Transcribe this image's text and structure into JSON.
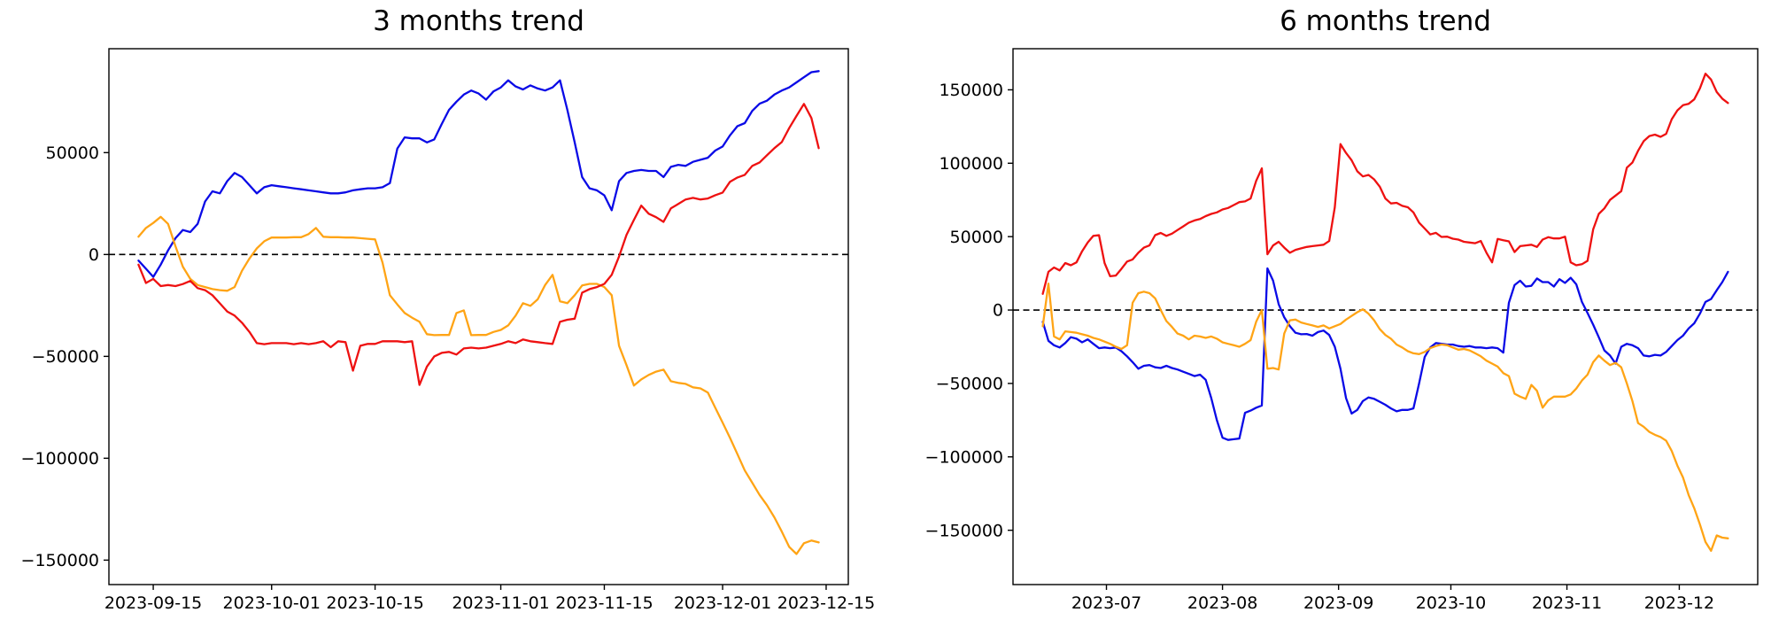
{
  "colors": {
    "blue": "#0a0ae6",
    "red": "#ee1111",
    "orange": "#ffa415",
    "axis": "#000000",
    "zero_line": "#000000",
    "background": "#ffffff"
  },
  "chart_data": [
    {
      "type": "line",
      "title": "3 months trend",
      "grid": false,
      "legend": "none",
      "zero_line": true,
      "ylim": [
        -162000,
        101000
      ],
      "y_ticks": [
        {
          "label": "50000",
          "value": 50000
        },
        {
          "label": "0",
          "value": 0
        },
        {
          "label": "−50000",
          "value": -50000
        },
        {
          "label": "−100000",
          "value": -100000
        },
        {
          "label": "−150000",
          "value": -150000
        }
      ],
      "x_ticks": [
        {
          "label": "2023-09-15",
          "pos": 0.0217
        },
        {
          "label": "2023-10-01",
          "pos": 0.1957
        },
        {
          "label": "2023-10-15",
          "pos": 0.3478
        },
        {
          "label": "2023-11-01",
          "pos": 0.5326
        },
        {
          "label": "2023-11-15",
          "pos": 0.6848
        },
        {
          "label": "2023-12-01",
          "pos": 0.8587
        },
        {
          "label": "2023-12-15",
          "pos": 1.0109
        }
      ],
      "x_range": [
        "2023-09-13",
        "2023-12-14"
      ],
      "series": [
        {
          "name": "blue",
          "color": "blue",
          "values": [
            -3000,
            -7000,
            -11000,
            -5000,
            2000,
            8000,
            12000,
            11000,
            15000,
            26000,
            31000,
            30000,
            36000,
            40000,
            38000,
            34000,
            30000,
            33000,
            34000,
            33500,
            33000,
            32500,
            32000,
            31500,
            31000,
            30500,
            30000,
            30000,
            30500,
            31500,
            32000,
            32500,
            32500,
            33000,
            35000,
            52000,
            57500,
            57000,
            57000,
            55000,
            56500,
            64000,
            71000,
            75000,
            78500,
            80500,
            79000,
            76000,
            80000,
            82000,
            85500,
            82500,
            81000,
            83000,
            81500,
            80500,
            82000,
            85500,
            71000,
            55000,
            38000,
            32500,
            31500,
            29000,
            21700,
            36000,
            40000,
            41000,
            41500,
            41000,
            41000,
            38000,
            43000,
            44000,
            43500,
            45500,
            46500,
            47500,
            51000,
            53000,
            58500,
            63000,
            64500,
            70500,
            74000,
            75500,
            78500,
            80500,
            82000,
            84500,
            87000,
            89500,
            90000
          ]
        },
        {
          "name": "orange",
          "color": "orange",
          "values": [
            8700,
            13000,
            15500,
            18500,
            15000,
            4000,
            -6000,
            -12000,
            -15000,
            -16000,
            -17000,
            -17500,
            -17800,
            -16000,
            -8000,
            -2000,
            3000,
            6500,
            8300,
            8300,
            8300,
            8500,
            8500,
            10000,
            13000,
            8700,
            8500,
            8500,
            8300,
            8300,
            8000,
            7700,
            7400,
            -4000,
            -20000,
            -24500,
            -28700,
            -31000,
            -33000,
            -39100,
            -39600,
            -39500,
            -39500,
            -28700,
            -27400,
            -39600,
            -39500,
            -39500,
            -38000,
            -37000,
            -34800,
            -30000,
            -23900,
            -25200,
            -22000,
            -15000,
            -10000,
            -23000,
            -23900,
            -20000,
            -15200,
            -14400,
            -14400,
            -16000,
            -20000,
            -44800,
            -54300,
            -64300,
            -61300,
            -59100,
            -57500,
            -56500,
            -62200,
            -63000,
            -63500,
            -65200,
            -65700,
            -67800,
            -75200,
            -82600,
            -90000,
            -98000,
            -106000,
            -112000,
            -118000,
            -123000,
            -129000,
            -136000,
            -143500,
            -147000,
            -141700,
            -140400,
            -141300
          ]
        },
        {
          "name": "red",
          "color": "red",
          "values": [
            -5000,
            -14000,
            -12000,
            -15500,
            -15000,
            -15500,
            -14500,
            -13000,
            -16500,
            -17500,
            -20000,
            -24000,
            -28000,
            -30000,
            -33500,
            -38000,
            -43500,
            -44000,
            -43500,
            -43500,
            -43500,
            -44000,
            -43500,
            -44000,
            -43500,
            -42600,
            -45500,
            -42600,
            -43000,
            -57000,
            -44800,
            -43900,
            -43900,
            -42600,
            -42600,
            -42600,
            -43000,
            -42600,
            -64000,
            -55000,
            -50000,
            -48300,
            -47800,
            -49100,
            -46100,
            -45700,
            -46100,
            -45700,
            -44800,
            -43900,
            -42600,
            -43500,
            -41700,
            -42600,
            -43000,
            -43500,
            -43900,
            -33000,
            -32000,
            -31500,
            -18700,
            -17000,
            -16000,
            -14400,
            -10000,
            -1000,
            9600,
            17000,
            24000,
            20000,
            18300,
            16000,
            22600,
            24800,
            27000,
            27800,
            27000,
            27500,
            29100,
            30400,
            35700,
            37800,
            39100,
            43500,
            45200,
            48700,
            52200,
            55200,
            62000,
            68000,
            73900,
            67000,
            52200
          ]
        }
      ]
    },
    {
      "type": "line",
      "title": "6 months trend",
      "grid": false,
      "legend": "none",
      "zero_line": true,
      "ylim": [
        -187000,
        178000
      ],
      "y_ticks": [
        {
          "label": "150000",
          "value": 150000
        },
        {
          "label": "100000",
          "value": 100000
        },
        {
          "label": "50000",
          "value": 50000
        },
        {
          "label": "0",
          "value": 0
        },
        {
          "label": "−50000",
          "value": -50000
        },
        {
          "label": "−100000",
          "value": -100000
        },
        {
          "label": "−150000",
          "value": -150000
        }
      ],
      "x_ticks": [
        {
          "label": "2023-07",
          "pos": 0.0929
        },
        {
          "label": "2023-08",
          "pos": 0.2623
        },
        {
          "label": "2023-09",
          "pos": 0.4317
        },
        {
          "label": "2023-10",
          "pos": 0.5956
        },
        {
          "label": "2023-11",
          "pos": 0.765
        },
        {
          "label": "2023-12",
          "pos": 0.929
        }
      ],
      "x_range": [
        "2023-06-14",
        "2023-12-14"
      ],
      "series": [
        {
          "name": "blue",
          "color": "blue",
          "values": [
            -8000,
            -21000,
            -24000,
            -25500,
            -22500,
            -18500,
            -19500,
            -22000,
            -20000,
            -23000,
            -26000,
            -25500,
            -26000,
            -25500,
            -28000,
            -31500,
            -35500,
            -40000,
            -38000,
            -37500,
            -39000,
            -39500,
            -38000,
            -39500,
            -40500,
            -42000,
            -43500,
            -45000,
            -44000,
            -47500,
            -60000,
            -75000,
            -87000,
            -88500,
            -88000,
            -87500,
            -70000,
            -68500,
            -66500,
            -65000,
            28400,
            20000,
            4000,
            -5000,
            -11000,
            -15500,
            -16500,
            -16300,
            -17500,
            -15000,
            -14000,
            -17000,
            -25000,
            -40000,
            -60000,
            -70500,
            -68000,
            -62000,
            -59500,
            -60500,
            -62500,
            -64500,
            -67000,
            -69000,
            -68000,
            -68000,
            -67000,
            -50000,
            -32000,
            -25500,
            -22500,
            -23000,
            -23500,
            -23500,
            -24500,
            -25000,
            -24500,
            -25500,
            -25500,
            -26000,
            -25500,
            -26000,
            -29000,
            5000,
            17000,
            20000,
            16000,
            16500,
            21500,
            19000,
            19000,
            16000,
            21000,
            18500,
            22000,
            17500,
            5500,
            -2000,
            -10000,
            -18500,
            -27500,
            -31000,
            -36500,
            -25000,
            -23000,
            -24000,
            -26000,
            -31000,
            -31500,
            -30500,
            -31000,
            -28500,
            -24500,
            -20500,
            -17500,
            -12500,
            -9000,
            -2500,
            5500,
            7500,
            13500,
            19000,
            26000
          ]
        },
        {
          "name": "orange",
          "color": "orange",
          "values": [
            -11000,
            18000,
            -18000,
            -20000,
            -14500,
            -15000,
            -15500,
            -16500,
            -17500,
            -19000,
            -20000,
            -21500,
            -23000,
            -25000,
            -26500,
            -24000,
            5000,
            11500,
            12500,
            11500,
            8000,
            0,
            -7500,
            -11500,
            -16000,
            -17500,
            -20000,
            -17500,
            -18000,
            -19000,
            -18000,
            -19500,
            -22000,
            -23000,
            -24000,
            -25000,
            -23000,
            -20500,
            -8000,
            0,
            -40000,
            -39500,
            -40500,
            -16000,
            -7000,
            -6500,
            -8500,
            -9500,
            -10500,
            -11500,
            -10500,
            -12500,
            -11000,
            -9500,
            -6500,
            -4000,
            -1500,
            500,
            -2500,
            -7000,
            -13000,
            -17000,
            -19500,
            -23500,
            -25500,
            -28000,
            -29500,
            -30000,
            -28500,
            -26000,
            -24500,
            -23500,
            -24000,
            -25500,
            -27000,
            -26500,
            -27500,
            -29500,
            -31500,
            -34500,
            -36500,
            -38500,
            -43000,
            -45000,
            -57000,
            -59000,
            -60500,
            -51000,
            -55000,
            -66500,
            -61500,
            -59000,
            -59000,
            -59000,
            -57500,
            -53500,
            -48000,
            -44000,
            -35500,
            -31000,
            -34500,
            -37500,
            -36000,
            -39000,
            -50000,
            -62000,
            -77000,
            -79500,
            -83000,
            -85000,
            -86500,
            -89000,
            -96000,
            -106000,
            -114000,
            -126000,
            -135000,
            -146000,
            -158000,
            -164000,
            -153500,
            -155000,
            -155500
          ]
        },
        {
          "name": "red",
          "color": "red",
          "values": [
            11000,
            26000,
            29000,
            27000,
            32000,
            30500,
            32500,
            40000,
            46000,
            50500,
            51000,
            32000,
            23000,
            23500,
            28000,
            33000,
            34500,
            39000,
            42500,
            44000,
            51000,
            52500,
            50500,
            52000,
            54500,
            57000,
            59500,
            61000,
            62000,
            64000,
            65500,
            66500,
            68500,
            69500,
            71500,
            73500,
            74000,
            76000,
            88000,
            96500,
            38000,
            44000,
            46500,
            42500,
            39000,
            41000,
            42000,
            43000,
            43500,
            44000,
            44500,
            47000,
            70000,
            113000,
            107000,
            102000,
            94500,
            91000,
            92000,
            89000,
            84000,
            76000,
            72600,
            73000,
            71000,
            70000,
            66500,
            59500,
            55500,
            51500,
            52600,
            49800,
            50000,
            48600,
            48000,
            46500,
            46000,
            45500,
            47000,
            39000,
            32500,
            48400,
            47500,
            46800,
            39500,
            43500,
            44000,
            44500,
            43000,
            48000,
            49600,
            48800,
            48800,
            50000,
            32500,
            30500,
            31200,
            33500,
            55000,
            65500,
            69200,
            75000,
            78000,
            81000,
            97000,
            100500,
            108500,
            115000,
            118500,
            119500,
            118000,
            120000,
            130000,
            136000,
            139500,
            140500,
            143500,
            151000,
            161000,
            157000,
            148500,
            144000,
            141000
          ]
        }
      ]
    }
  ]
}
